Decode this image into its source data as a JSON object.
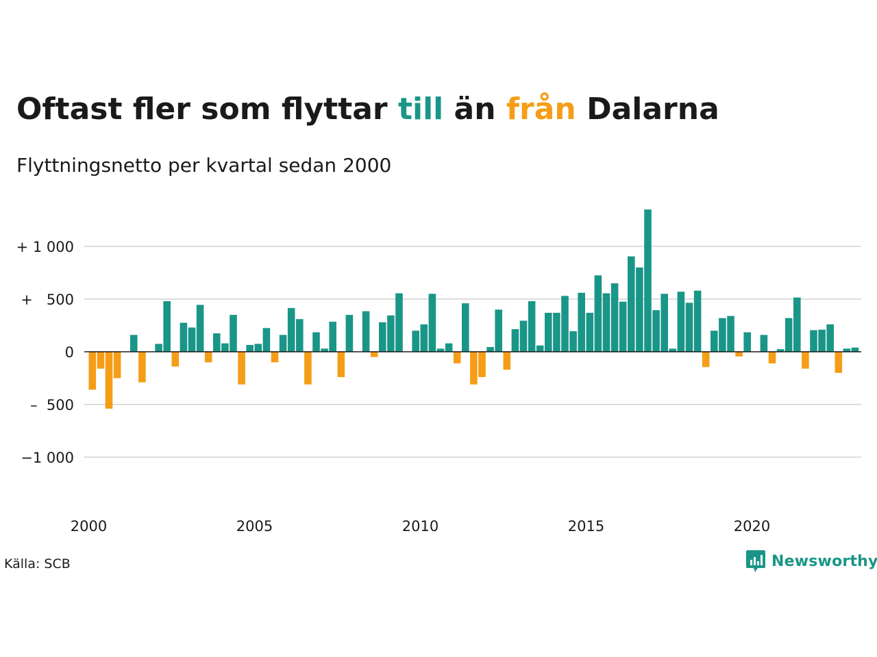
{
  "title": {
    "part1": "Oftast fler som flyttar ",
    "till": "till",
    "part2": " än ",
    "fran": "från",
    "part3": " Dalarna"
  },
  "subtitle": "Flyttningsnetto per kvartal sedan 2000",
  "source": "Källa: SCB",
  "logo": {
    "text": "Newsworthy",
    "icon": "chart-bubble-icon"
  },
  "colors": {
    "positive": "#1a9688",
    "negative": "#f59d17",
    "grid": "#dddddd",
    "text": "#1a1a1a"
  },
  "chart_data": {
    "type": "bar",
    "title": "Oftast fler som flyttar till än från Dalarna",
    "subtitle": "Flyttningsnetto per kvartal sedan 2000",
    "ylim": [
      -1400,
      1350
    ],
    "grid": true,
    "y_ticks": [
      {
        "value": 1000,
        "label": "+ 1 000"
      },
      {
        "value": 500,
        "label": "+   500"
      },
      {
        "value": 0,
        "label": "0"
      },
      {
        "value": -500,
        "label": "–  500"
      },
      {
        "value": -1000,
        "label": "−1 000"
      }
    ],
    "x_ticks": [
      {
        "year": 2000,
        "label": "2000"
      },
      {
        "year": 2005,
        "label": "2005"
      },
      {
        "year": 2010,
        "label": "2010"
      },
      {
        "year": 2015,
        "label": "2015"
      },
      {
        "year": 2020,
        "label": "2020"
      }
    ],
    "x_start": "2000 Q1",
    "values": [
      -360,
      -160,
      -540,
      -250,
      0,
      160,
      -290,
      0,
      75,
      480,
      -140,
      275,
      230,
      445,
      -100,
      175,
      80,
      350,
      -310,
      65,
      75,
      225,
      -100,
      160,
      415,
      310,
      -310,
      185,
      30,
      285,
      -240,
      350,
      0,
      385,
      -50,
      280,
      345,
      555,
      0,
      200,
      260,
      550,
      30,
      80,
      -110,
      460,
      -310,
      -240,
      45,
      400,
      -170,
      215,
      295,
      480,
      60,
      370,
      370,
      530,
      195,
      560,
      370,
      725,
      555,
      650,
      475,
      905,
      800,
      1350,
      395,
      550,
      30,
      570,
      465,
      580,
      -145,
      200,
      320,
      340,
      -45,
      185,
      0,
      160,
      -110,
      25,
      320,
      515,
      -160,
      205,
      210,
      260,
      -200,
      30,
      40
    ]
  }
}
